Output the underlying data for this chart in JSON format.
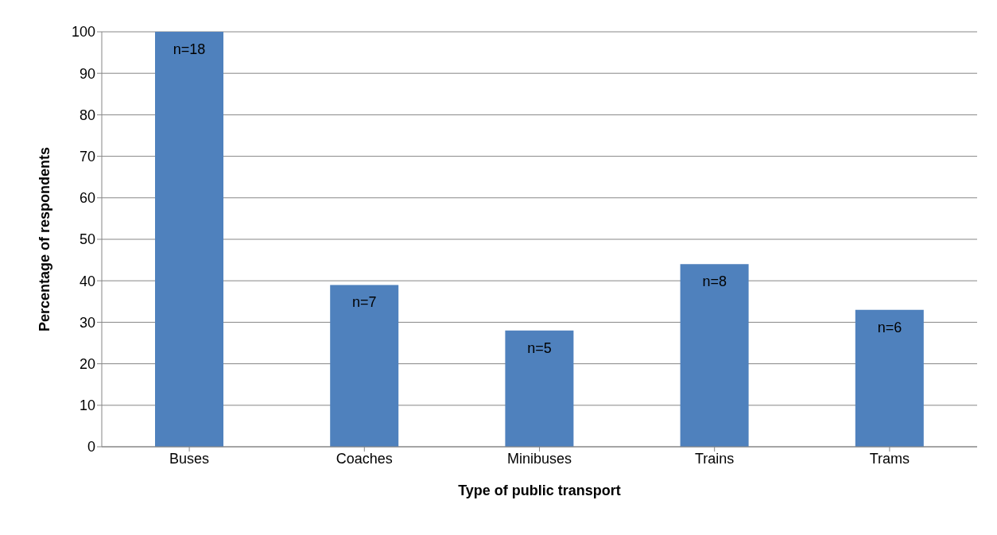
{
  "chart_data": {
    "type": "bar",
    "xlabel": "Type of public transport",
    "ylabel": "Percentage of respondents",
    "categories": [
      "Buses",
      "Coaches",
      "Minibuses",
      "Trains",
      "Trams"
    ],
    "values": [
      100,
      39,
      28,
      44,
      33
    ],
    "annotations": [
      {
        "text": "n=18",
        "x": "Buses",
        "y": 100
      },
      {
        "text": "n=7",
        "x": "Coaches",
        "y": 39
      },
      {
        "text": "n=5",
        "x": "Minibuses",
        "y": 28
      },
      {
        "text": "n=8",
        "x": "Trains",
        "y": 44
      },
      {
        "text": "n=6",
        "x": "Trams",
        "y": 33
      }
    ],
    "color": "#4f81bd",
    "ylim": [
      0,
      100
    ],
    "yticks": [
      0,
      10,
      20,
      30,
      40,
      50,
      60,
      70,
      80,
      90,
      100
    ],
    "grid": "y"
  }
}
